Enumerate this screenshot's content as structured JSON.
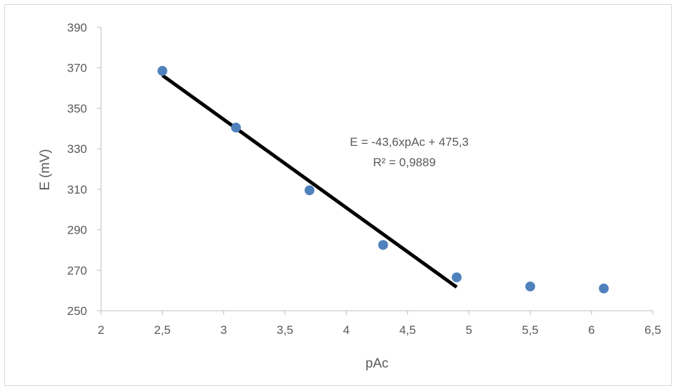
{
  "chart_data": {
    "type": "scatter",
    "xlabel": "pAc",
    "ylabel": "E (mV)",
    "xlim": [
      2,
      6.5
    ],
    "ylim": [
      250,
      390
    ],
    "xticks": [
      "2",
      "2,5",
      "3",
      "3,5",
      "4",
      "4,5",
      "5",
      "5,5",
      "6",
      "6,5"
    ],
    "yticks": [
      "250",
      "270",
      "290",
      "310",
      "330",
      "350",
      "370",
      "390"
    ],
    "grid": false,
    "series": [
      {
        "x": [
          2.5,
          3.1,
          3.7,
          4.3,
          4.9,
          5.5,
          6.1
        ],
        "y": [
          368.5,
          340.5,
          309.5,
          282.5,
          266.5,
          262,
          261
        ],
        "color": "#4f81bd"
      }
    ],
    "trendline": {
      "slope": -43.6,
      "intercept": 475.3,
      "x_range": [
        2.5,
        4.9
      ],
      "color": "#000000",
      "equation_label": "E = -43,6xpAc + 475,3",
      "r2_label": "R² = 0,9889"
    }
  }
}
